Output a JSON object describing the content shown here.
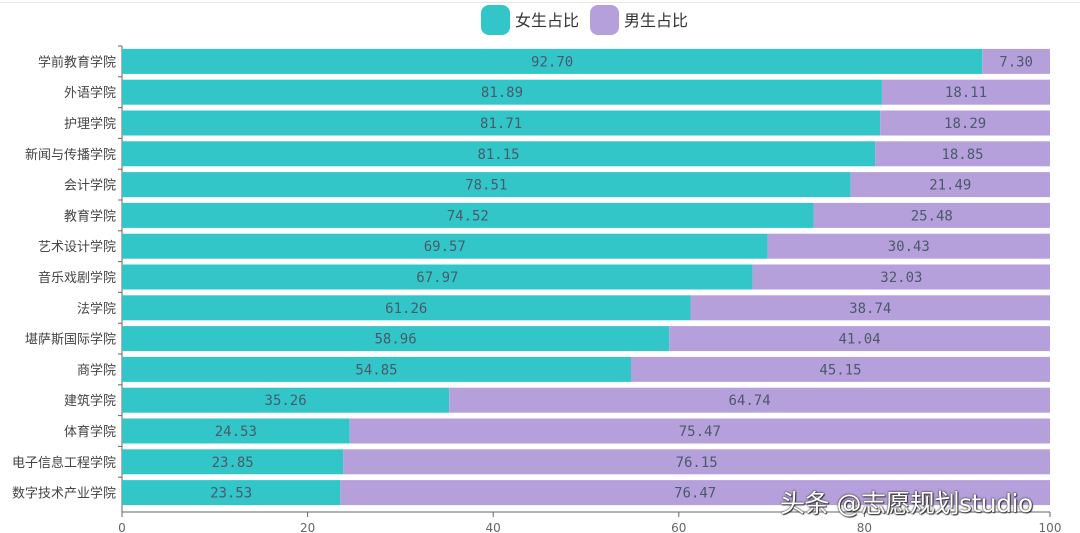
{
  "chart_data": {
    "type": "bar",
    "orientation": "horizontal",
    "stacked": true,
    "categories": [
      "学前教育学院",
      "外语学院",
      "护理学院",
      "新闻与传播学院",
      "会计学院",
      "教育学院",
      "艺术设计学院",
      "音乐戏剧学院",
      "法学院",
      "堪萨斯国际学院",
      "商学院",
      "建筑学院",
      "体育学院",
      "电子信息工程学院",
      "数字技术产业学院"
    ],
    "series": [
      {
        "name": "女生占比",
        "color": "#33c6c9",
        "values": [
          92.7,
          81.89,
          81.71,
          81.15,
          78.51,
          74.52,
          69.57,
          67.97,
          61.26,
          58.96,
          54.85,
          35.26,
          24.53,
          23.85,
          23.53
        ]
      },
      {
        "name": "男生占比",
        "color": "#b6a0dc",
        "values": [
          7.3,
          18.11,
          18.29,
          18.85,
          21.49,
          25.48,
          30.43,
          32.03,
          38.74,
          41.04,
          45.15,
          64.74,
          75.47,
          76.15,
          76.47
        ]
      }
    ],
    "xlim": [
      0,
      100
    ],
    "xticks": [
      0,
      20,
      40,
      60,
      80,
      100
    ],
    "data_labels": true,
    "legend_position": "top-center",
    "grid": false
  },
  "watermark": "头条 @志愿规划studio"
}
